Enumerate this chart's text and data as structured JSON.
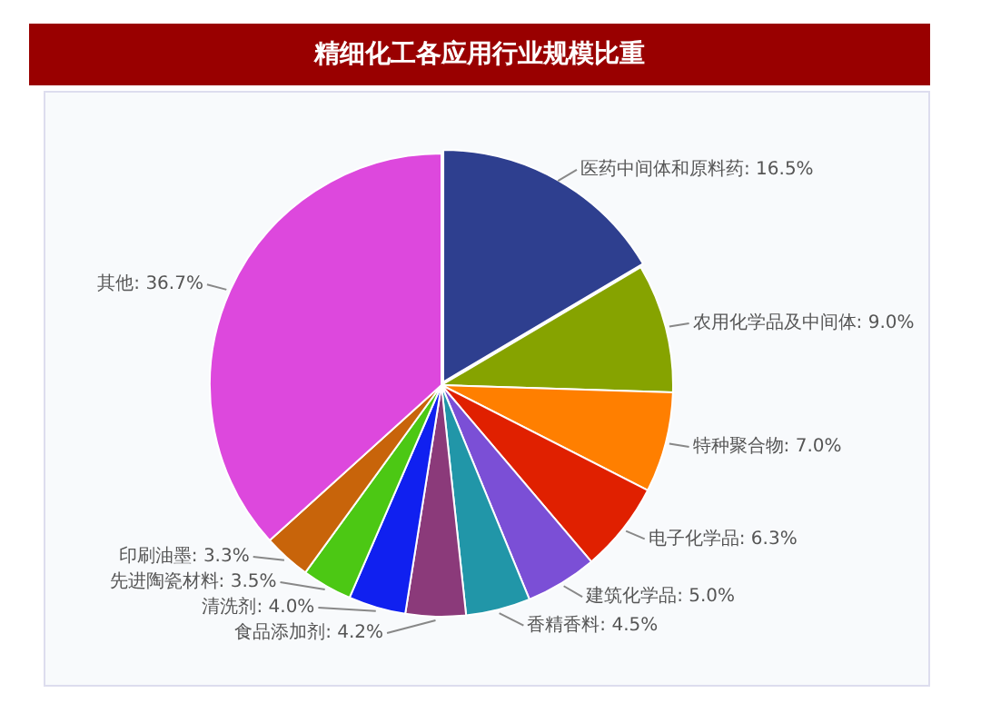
{
  "chart_data": {
    "type": "pie",
    "title": "精细化工各应用行业规模比重",
    "categories": [
      "医药中间体和原料药",
      "农用化学品及中间体",
      "特种聚合物",
      "电子化学品",
      "建筑化学品",
      "香精香料",
      "食品添加剂",
      "清洗剂",
      "先进陶瓷材料",
      "印刷油墨",
      "其他"
    ],
    "values": [
      16.5,
      9.0,
      7.0,
      6.3,
      5.0,
      4.5,
      4.2,
      4.0,
      3.5,
      3.3,
      36.7
    ],
    "colors": [
      "#2e3f8f",
      "#86a300",
      "#ff7f00",
      "#e02000",
      "#7b4fd6",
      "#2196a8",
      "#8b3a7a",
      "#1020f0",
      "#4cc814",
      "#c8640a",
      "#dd48dd"
    ],
    "value_labels": [
      ": 16.5%",
      ": 9.0%",
      ": 7.0%",
      ": 6.3%",
      ": 5.0%",
      ": 4.5%",
      ": 4.2%",
      ": 4.0%",
      ": 3.5%",
      ": 3.3%",
      ": 36.7%"
    ],
    "legend": false
  }
}
